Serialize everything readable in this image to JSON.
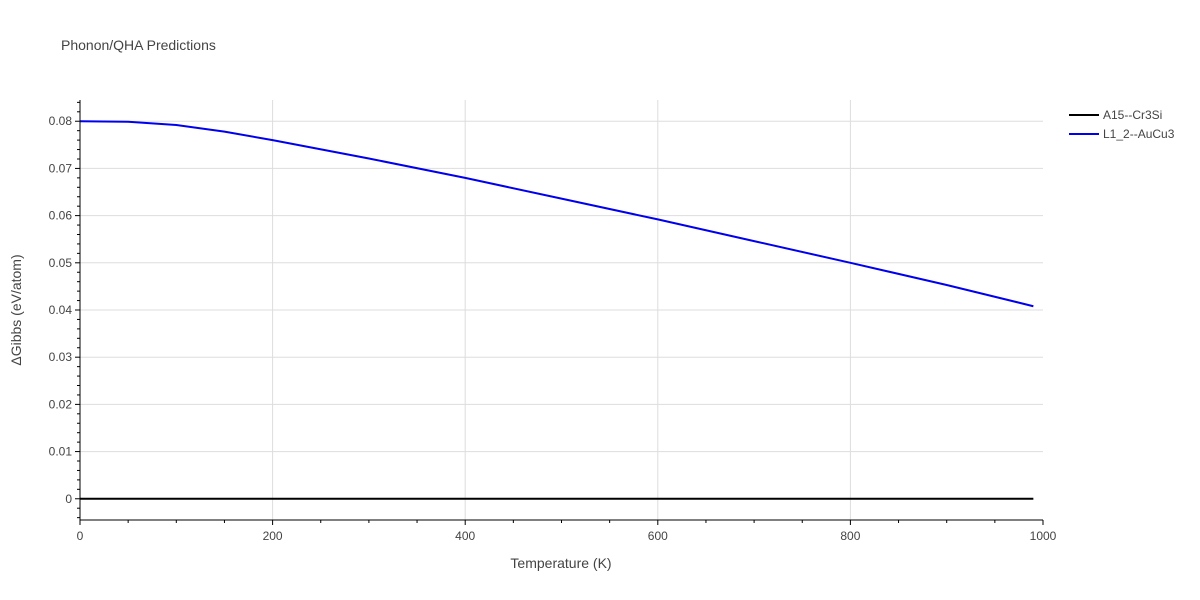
{
  "chart_data": {
    "type": "line",
    "title": "Phonon/QHA Predictions",
    "xlabel": "Temperature (K)",
    "ylabel": "ΔGibbs (eV/atom)",
    "xlim": [
      0,
      1000
    ],
    "ylim": [
      -0.0045,
      0.0845
    ],
    "xticks": [
      0,
      200,
      400,
      600,
      800,
      1000
    ],
    "xtick_labels": [
      "0",
      "200",
      "400",
      "600",
      "800",
      "1000"
    ],
    "yticks": [
      0,
      0.01,
      0.02,
      0.03,
      0.04,
      0.05,
      0.06,
      0.07,
      0.08
    ],
    "ytick_labels": [
      "0",
      "0.01",
      "0.02",
      "0.03",
      "0.04",
      "0.05",
      "0.06",
      "0.07",
      "0.08"
    ],
    "grid": true,
    "legend_position": "top-right",
    "series": [
      {
        "name": "A15--Cr3Si",
        "color": "#000000",
        "x": [
          0,
          50,
          100,
          150,
          200,
          300,
          400,
          500,
          600,
          700,
          800,
          900,
          990
        ],
        "y": [
          0,
          0,
          0,
          0,
          0,
          0,
          0,
          0,
          0,
          0,
          0,
          0,
          0
        ]
      },
      {
        "name": "L1_2--AuCu3",
        "color": "#0000ee",
        "x": [
          0,
          50,
          100,
          150,
          200,
          300,
          400,
          500,
          600,
          700,
          800,
          900,
          990
        ],
        "y": [
          0.08,
          0.0799,
          0.0792,
          0.0778,
          0.076,
          0.0721,
          0.068,
          0.0636,
          0.0592,
          0.0546,
          0.05,
          0.0453,
          0.0408
        ]
      }
    ]
  }
}
